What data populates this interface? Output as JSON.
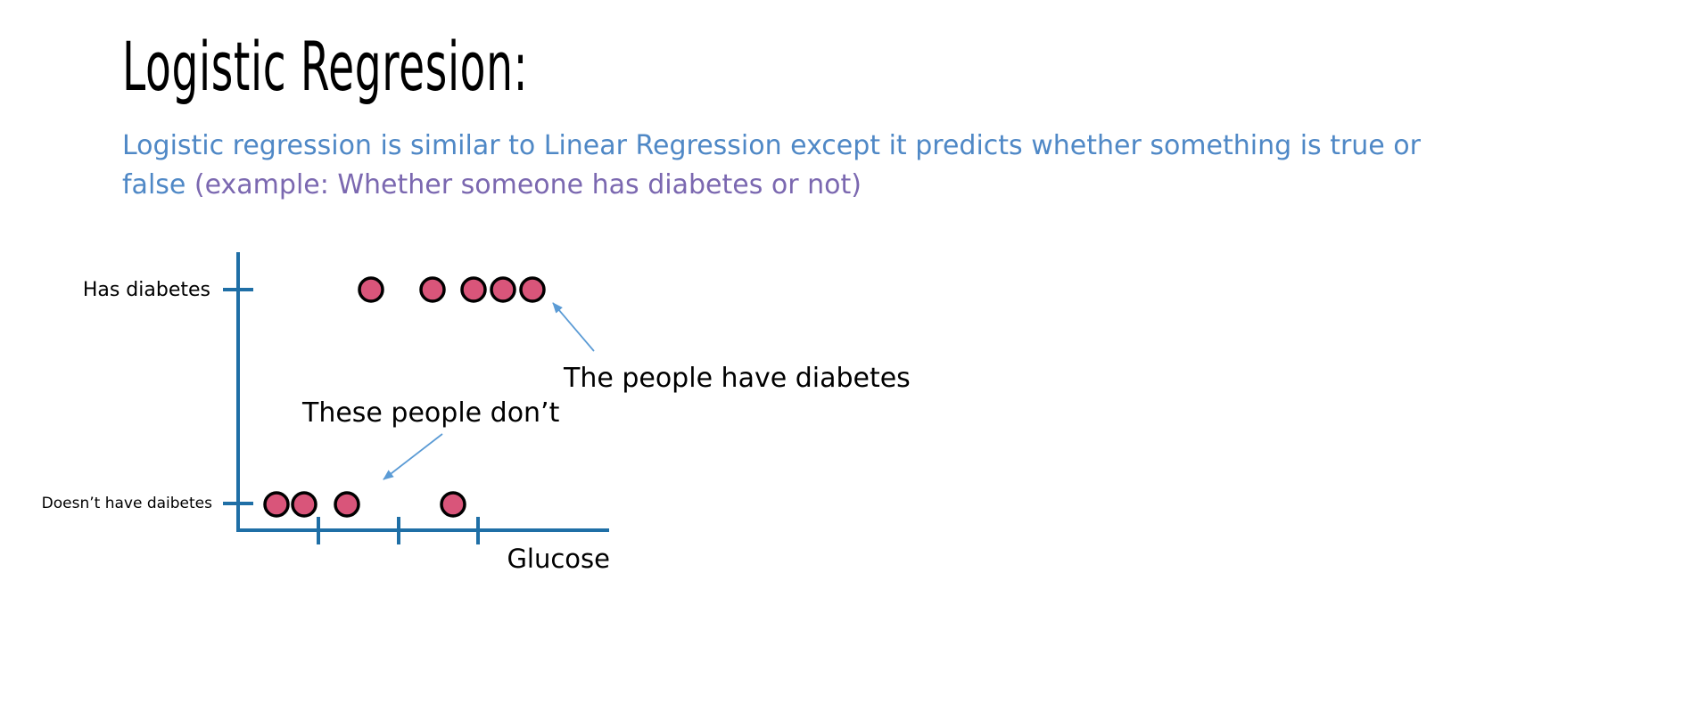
{
  "slide": {
    "title": "Logistic Regresion:",
    "subtitle_main": "Logistic regression is similar to Linear Regression except it predicts whether something is true or false ",
    "subtitle_example": "(example: Whether someone has diabetes or not)"
  },
  "diagram": {
    "y_label_top": "Has diabetes",
    "y_label_bottom": "Doesn’t have daibetes",
    "x_label": "Glucose",
    "annotation_diabetes": "The people have diabetes",
    "annotation_no_diabetes": "These people don’t",
    "colors": {
      "axis": "#1f6fa6",
      "point_fill": "#d9557a",
      "point_stroke": "#000000",
      "arrow": "#5b9bd5"
    },
    "points_has_diabetes": 5,
    "points_no_diabetes": 4
  }
}
